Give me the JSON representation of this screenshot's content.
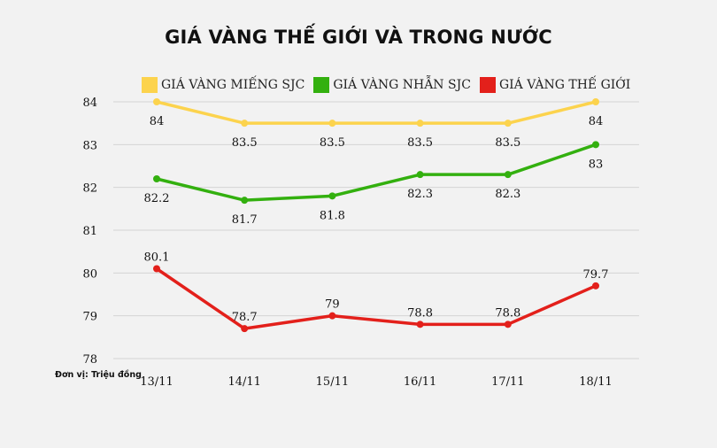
{
  "chart_data": {
    "type": "line",
    "title": "GIÁ VÀNG THẾ GIỚI VÀ TRONG NƯỚC",
    "unit_note": "Đơn vị: Triệu đồng",
    "categories": [
      "13/11",
      "14/11",
      "15/11",
      "16/11",
      "17/11",
      "18/11"
    ],
    "ylim": [
      78,
      84
    ],
    "yticks": [
      78,
      79,
      80,
      81,
      82,
      83,
      84
    ],
    "grid": true,
    "legend_position": "top",
    "series": [
      {
        "name": "GIÁ VÀNG MIẾNG SJC",
        "color": "#fcd34d",
        "values": [
          84,
          83.5,
          83.5,
          83.5,
          83.5,
          84
        ],
        "labels": [
          "84",
          "83.5",
          "83.5",
          "83.5",
          "83.5",
          "84"
        ],
        "label_pos": "below"
      },
      {
        "name": "GIÁ VÀNG NHẪN SJC",
        "color": "#33b00f",
        "values": [
          82.2,
          81.7,
          81.8,
          82.3,
          82.3,
          83
        ],
        "labels": [
          "82.2",
          "81.7",
          "81.8",
          "82.3",
          "82.3",
          "83"
        ],
        "label_pos": "below"
      },
      {
        "name": "GIÁ VÀNG THẾ GIỚI",
        "color": "#e3201b",
        "values": [
          80.1,
          78.7,
          79,
          78.8,
          78.8,
          79.7
        ],
        "labels": [
          "80.1",
          "78.7",
          "79",
          "78.8",
          "78.8",
          "79.7"
        ],
        "label_pos": "above"
      }
    ]
  }
}
